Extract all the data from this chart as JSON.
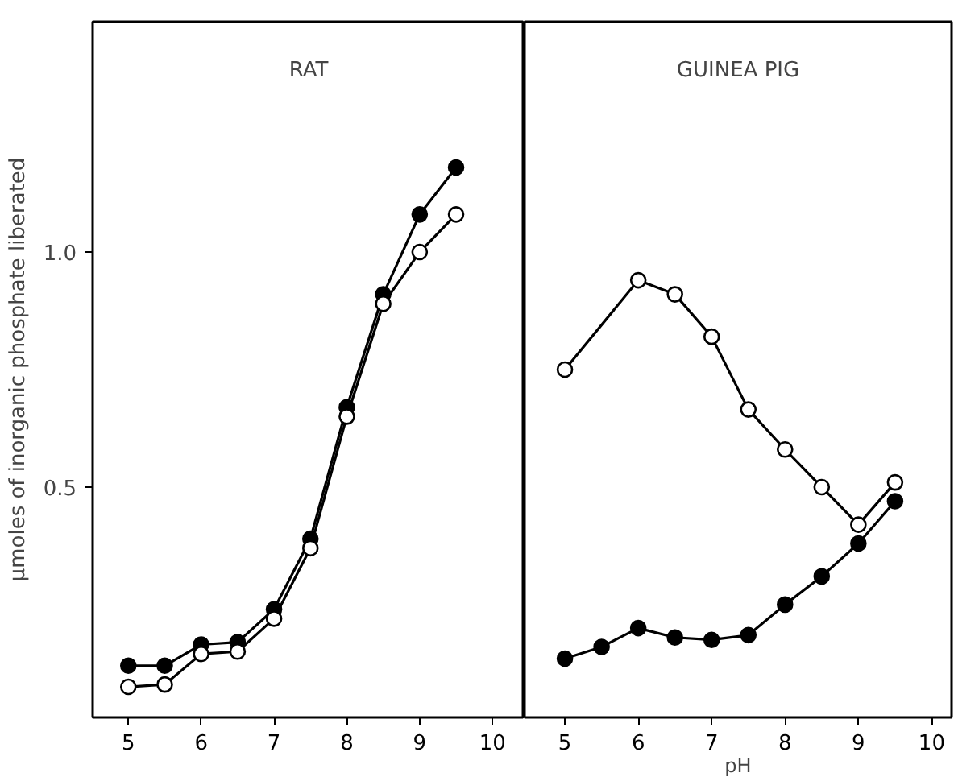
{
  "chart_data": [
    {
      "type": "line",
      "title": "RAT",
      "ylabel": "μmoles of inorganic phosphate liberated",
      "x": [
        5,
        5.5,
        6,
        6.5,
        7,
        7.5,
        8,
        8.5,
        9,
        9.5
      ],
      "xlim": [
        4.51,
        10.44
      ],
      "xticks": [
        5,
        6,
        7,
        8,
        9,
        10
      ],
      "ylim": [
        0.01,
        1.49
      ],
      "yticks": [
        {
          "value": 0.5,
          "label": "0.5"
        },
        {
          "value": 1.0,
          "label": "1.0"
        }
      ],
      "marker": "circle",
      "grid": false,
      "series": [
        {
          "color": "#000000",
          "values": [
            0.12,
            0.12,
            0.165,
            0.17,
            0.24,
            0.39,
            0.67,
            0.91,
            1.08,
            1.18
          ]
        },
        {
          "color": "#ffffff",
          "values": [
            0.075,
            0.08,
            0.145,
            0.15,
            0.22,
            0.37,
            0.65,
            0.89,
            1.0,
            1.08
          ]
        }
      ]
    },
    {
      "type": "line",
      "title": "GUINEA PIG",
      "xlabel": "pH",
      "x": [
        5,
        5.5,
        6,
        6.5,
        7,
        7.5,
        8,
        8.5,
        9,
        9.5
      ],
      "xlim": [
        4.45,
        10.27
      ],
      "xticks": [
        5,
        6,
        7,
        8,
        9,
        10
      ],
      "ylim": [
        0.01,
        1.49
      ],
      "tick_labels": "x",
      "marker": "circle",
      "grid": false,
      "series": [
        {
          "color": "#ffffff",
          "values": [
            0.75,
            null,
            0.94,
            0.91,
            0.82,
            0.665,
            0.58,
            0.5,
            0.42,
            0.51
          ]
        },
        {
          "color": "#000000",
          "values": [
            0.135,
            0.16,
            0.2,
            0.18,
            0.175,
            0.185,
            0.25,
            0.31,
            0.38,
            0.47
          ]
        }
      ]
    }
  ]
}
